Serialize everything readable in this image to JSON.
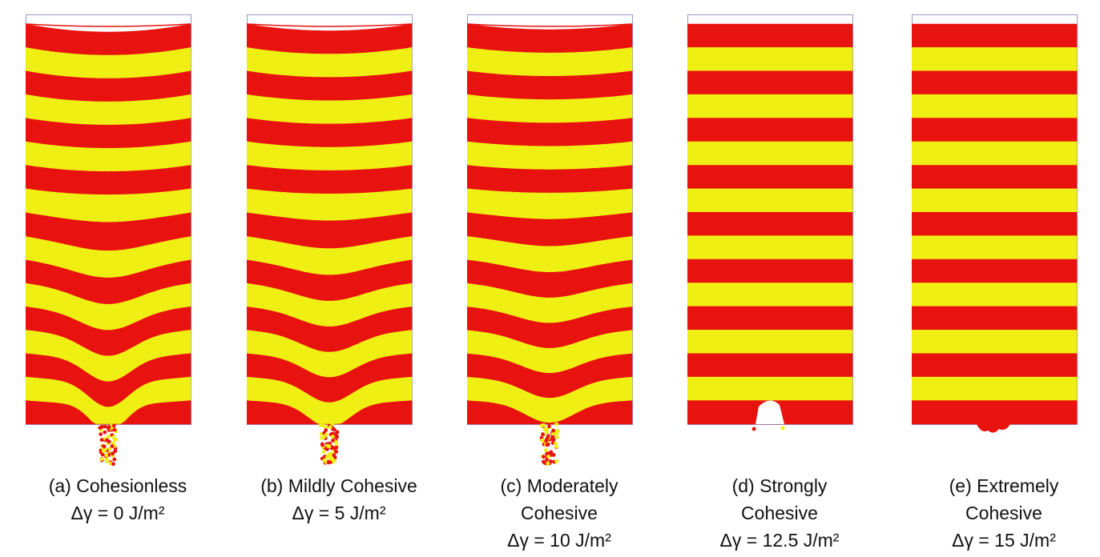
{
  "colors": {
    "red": "#e8130f",
    "yellow": "#f0ef14",
    "frame": "#9b97c9"
  },
  "panels": [
    {
      "title_lines": [
        "(a) Cohesionless"
      ],
      "equation": "Δγ = 0 J/m²",
      "drainage": "full",
      "funnel_depth": 1.0
    },
    {
      "title_lines": [
        "(b) Mildly Cohesive"
      ],
      "equation": "Δγ = 5 J/m²",
      "drainage": "full",
      "funnel_depth": 0.85
    },
    {
      "title_lines": [
        "(c) Moderately",
        "Cohesive"
      ],
      "equation": "Δγ = 10 J/m²",
      "drainage": "full",
      "funnel_depth": 0.7
    },
    {
      "title_lines": [
        "(d) Strongly",
        "Cohesive"
      ],
      "equation": "Δγ = 12.5 J/m²",
      "drainage": "arch",
      "funnel_depth": 0
    },
    {
      "title_lines": [
        "(e) Extremely",
        "Cohesive"
      ],
      "equation": "Δγ = 15 J/m²",
      "drainage": "minimal",
      "funnel_depth": 0
    }
  ]
}
